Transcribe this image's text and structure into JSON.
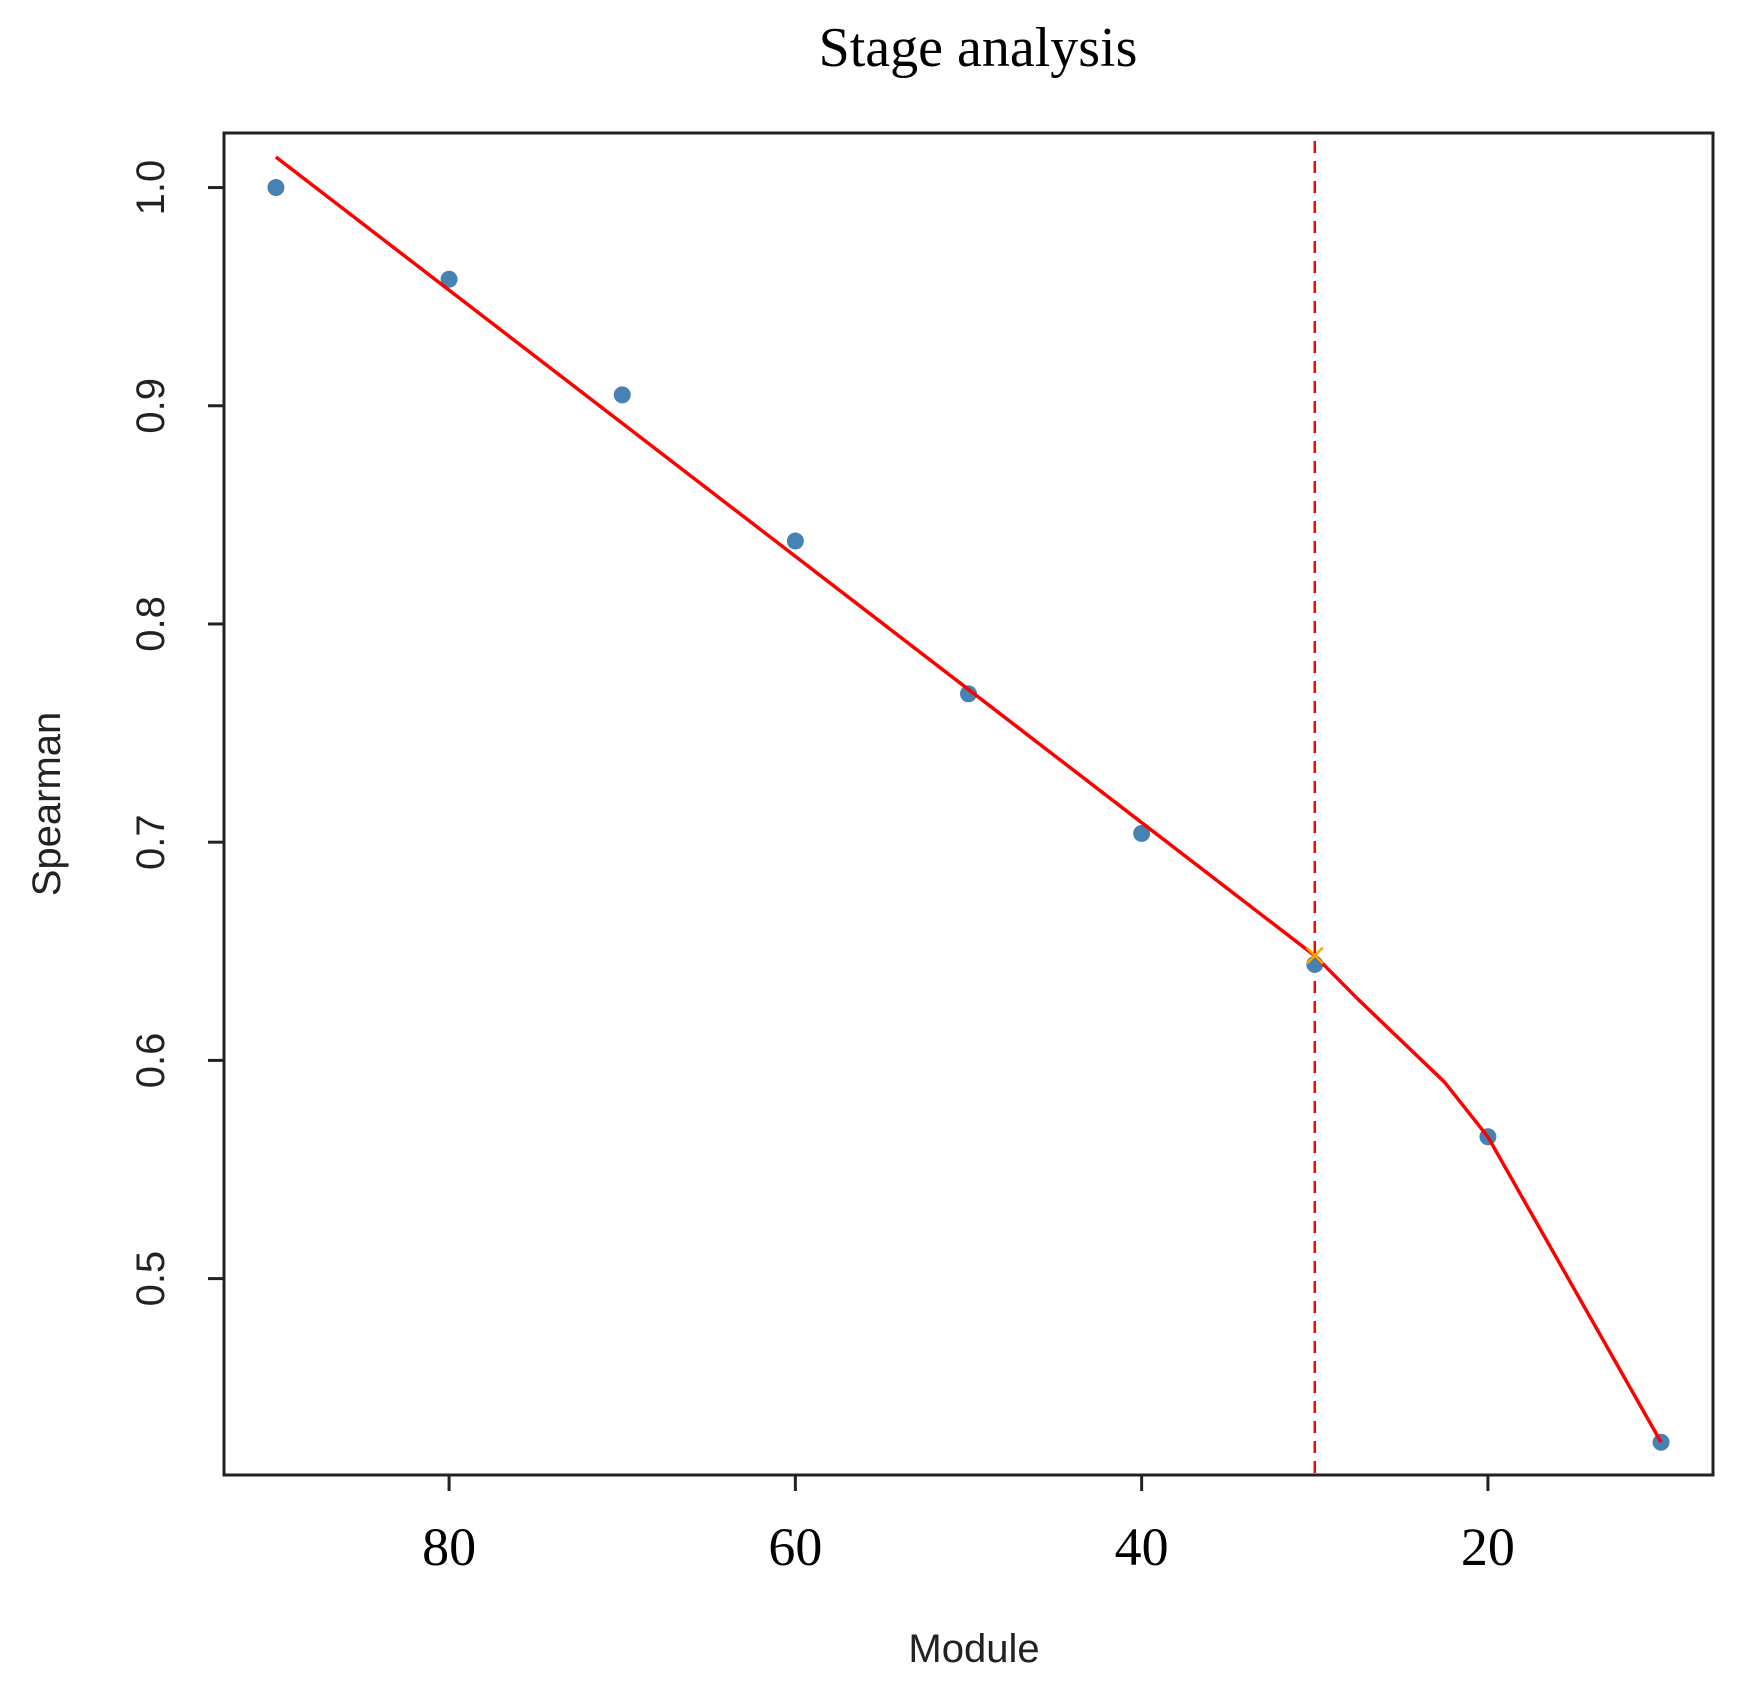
{
  "chart_data": {
    "type": "line",
    "title": "Stage analysis",
    "xlabel": "Module",
    "ylabel": "Spearman",
    "x_reversed": true,
    "xlim": [
      93,
      7
    ],
    "ylim": [
      0.41,
      1.025
    ],
    "xticks": [
      80,
      60,
      40,
      20
    ],
    "yticks": [
      1.0,
      0.9,
      0.8,
      0.7,
      0.6,
      0.5
    ],
    "ytick_labels": [
      "1.0",
      "0.9",
      "0.8",
      "0.7",
      "0.6",
      "0.5"
    ],
    "grid": false,
    "series": [
      {
        "kind": "scatter",
        "color": "#4682b4",
        "x": [
          90,
          80,
          70,
          60,
          50,
          40,
          30,
          20,
          10
        ],
        "y": [
          1.0,
          0.958,
          0.905,
          0.838,
          0.768,
          0.704,
          0.644,
          0.565,
          0.425
        ]
      },
      {
        "kind": "line",
        "color": "#ff0000",
        "x": [
          90,
          30,
          27.5,
          22.5,
          20,
          10
        ],
        "y": [
          1.014,
          0.648,
          0.628,
          0.59,
          0.565,
          0.425
        ]
      }
    ],
    "vline": {
      "x": 30,
      "color": "#ff0000",
      "style": "dashed"
    },
    "marker": {
      "x": 30,
      "y": 0.648,
      "color": "#ffa500",
      "shape": "x"
    }
  }
}
